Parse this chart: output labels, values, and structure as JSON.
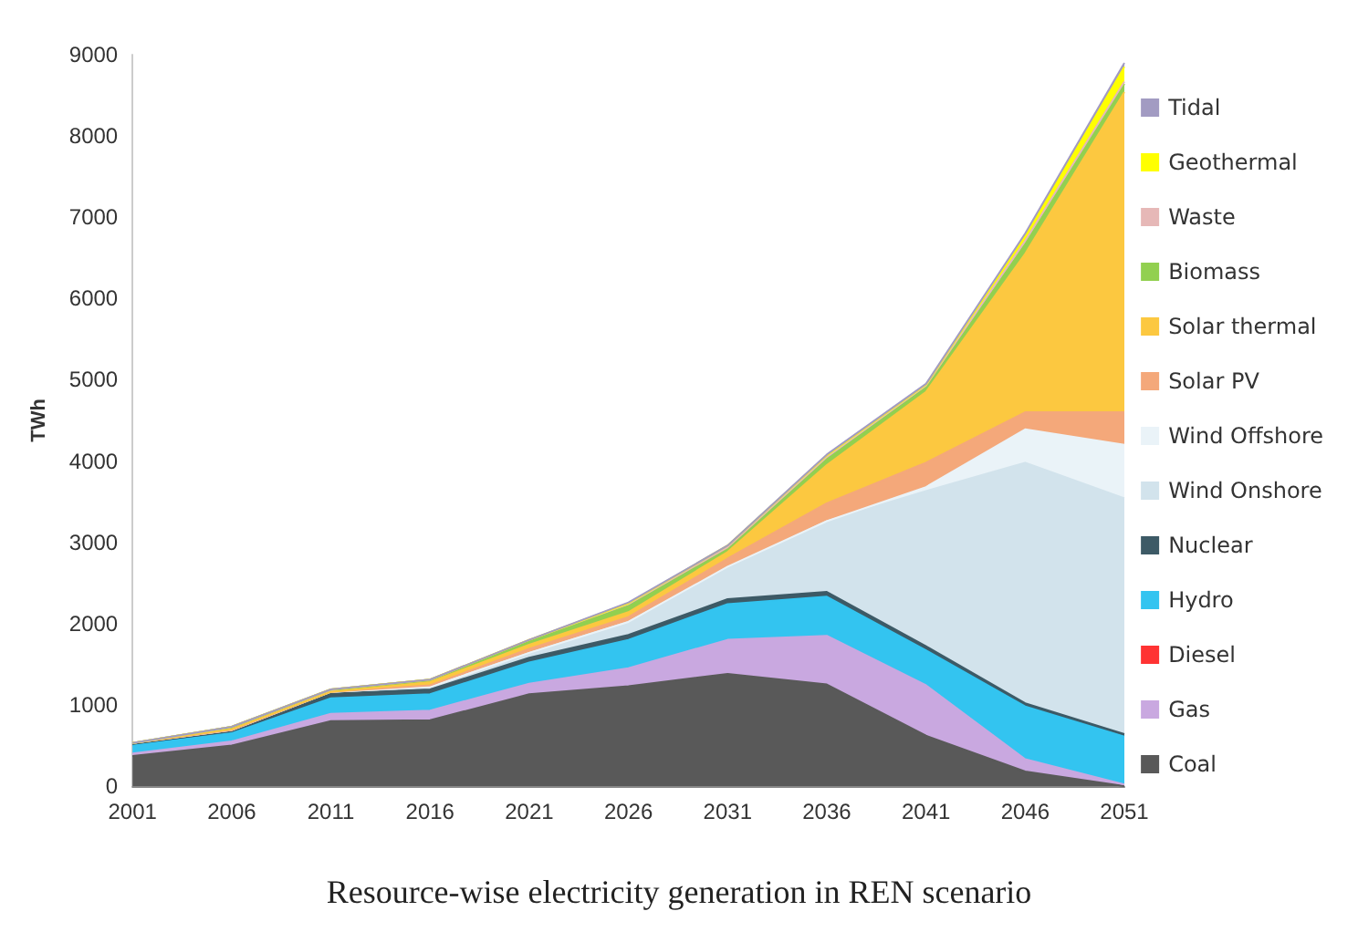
{
  "chart_data": {
    "type": "area",
    "stacked": true,
    "title": "Resource-wise electricity generation in REN scenario",
    "ylabel": "TWh",
    "categories": [
      "2001",
      "2006",
      "2011",
      "2016",
      "2021",
      "2026",
      "2031",
      "2036",
      "2041",
      "2046",
      "2051"
    ],
    "ylim": [
      0,
      9000
    ],
    "yticks": [
      0,
      1000,
      2000,
      3000,
      4000,
      5000,
      6000,
      7000,
      8000,
      9000
    ],
    "grid": false,
    "legend": "right",
    "series": [
      {
        "name": "Coal",
        "color": "#595959",
        "values": [
          370,
          500,
          800,
          810,
          1130,
          1230,
          1380,
          1250,
          620,
          180,
          0
        ]
      },
      {
        "name": "Gas",
        "color": "#c9a8e0",
        "values": [
          30,
          50,
          90,
          120,
          130,
          220,
          420,
          600,
          620,
          150,
          20
        ]
      },
      {
        "name": "Diesel",
        "color": "#ff3333",
        "values": [
          null,
          null,
          null,
          null,
          null,
          null,
          null,
          null,
          null,
          null,
          null
        ]
      },
      {
        "name": "Hydro",
        "color": "#33c4f0",
        "values": [
          100,
          100,
          190,
          200,
          260,
          350,
          440,
          480,
          430,
          650,
          590
        ]
      },
      {
        "name": "Nuclear",
        "color": "#3d5a66",
        "values": [
          20,
          30,
          60,
          60,
          60,
          60,
          60,
          60,
          50,
          40,
          30
        ]
      },
      {
        "name": "Wind Onshore",
        "color": "#d2e3ec",
        "values": [
          10,
          10,
          20,
          30,
          60,
          160,
          380,
          870,
          1910,
          2960,
          2900
        ]
      },
      {
        "name": "Wind Offshore",
        "color": "#eaf3f8",
        "values": [
          0,
          0,
          0,
          0,
          0,
          0,
          20,
          0,
          50,
          410,
          660
        ]
      },
      {
        "name": "Solar PV",
        "color": "#f4a87a",
        "values": [
          0,
          0,
          0,
          20,
          50,
          60,
          100,
          220,
          300,
          210,
          400
        ]
      },
      {
        "name": "Solar thermal",
        "color": "#fcc840",
        "values": [
          0,
          10,
          0,
          40,
          50,
          60,
          80,
          470,
          870,
          1950,
          3940
        ]
      },
      {
        "name": "Biomass",
        "color": "#92d050",
        "values": [
          0,
          30,
          30,
          30,
          50,
          80,
          60,
          80,
          60,
          120,
          100
        ]
      },
      {
        "name": "Waste",
        "color": "#e6b8b7",
        "values": [
          0,
          0,
          0,
          0,
          10,
          20,
          0,
          20,
          20,
          40,
          30
        ]
      },
      {
        "name": "Geothermal",
        "color": "#ffff00",
        "values": [
          0,
          0,
          0,
          0,
          0,
          10,
          20,
          20,
          10,
          60,
          180
        ]
      },
      {
        "name": "Tidal",
        "color": "#a29bc2",
        "values": [
          0,
          0,
          0,
          0,
          0,
          10,
          0,
          10,
          10,
          30,
          50
        ]
      }
    ]
  }
}
